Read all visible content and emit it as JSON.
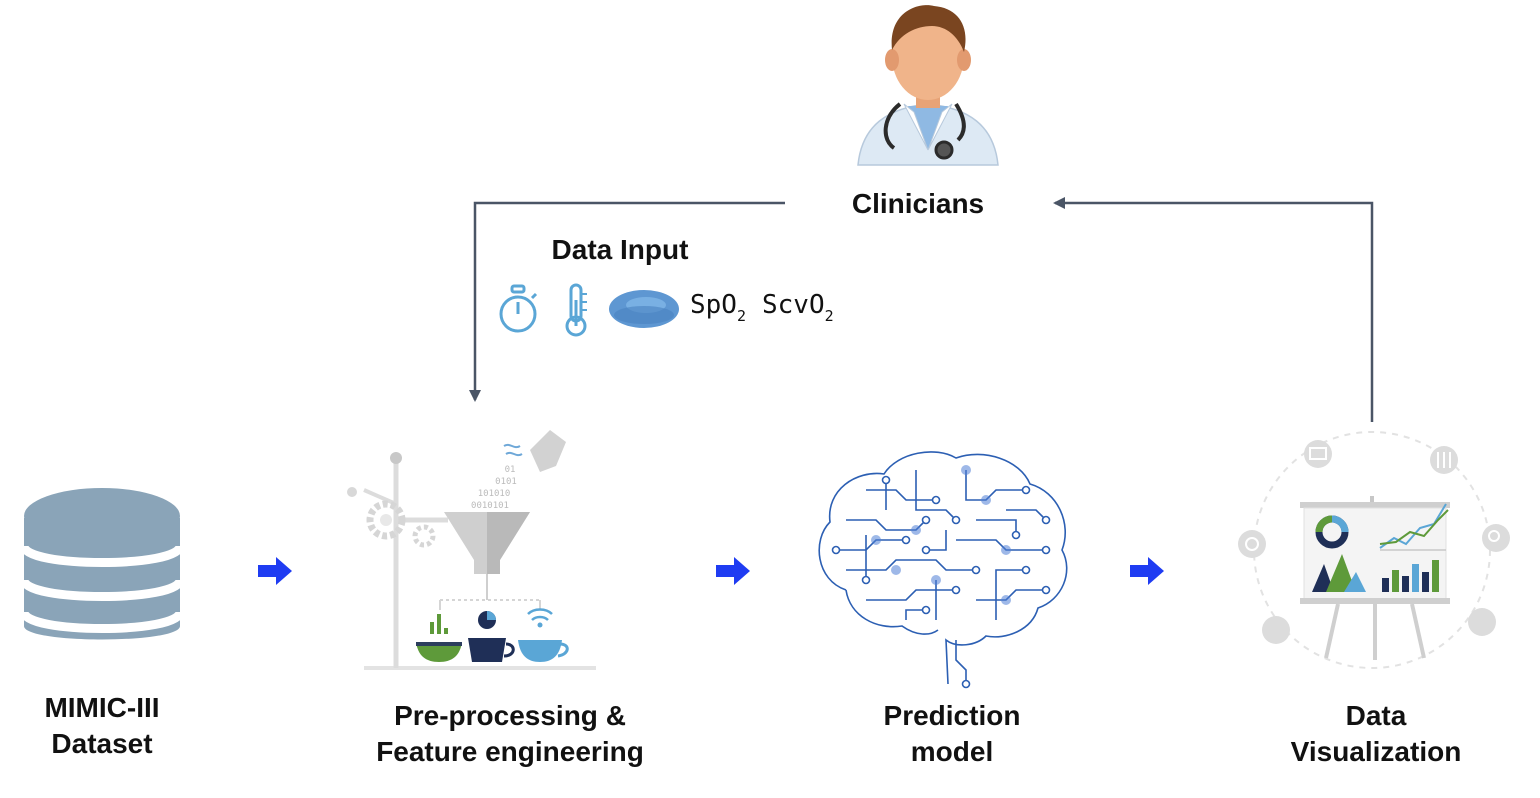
{
  "nodes": {
    "clinicians": {
      "label": "Clinicians"
    },
    "mimic": {
      "label_line1": "MIMIC-III",
      "label_line2": "Dataset"
    },
    "preprocessing": {
      "label_line1": "Pre-processing &",
      "label_line2": "Feature engineering"
    },
    "prediction": {
      "label_line1": "Prediction",
      "label_line2": "model"
    },
    "visualization": {
      "label_line1": "Data",
      "label_line2": "Visualization"
    }
  },
  "data_input": {
    "title": "Data Input",
    "icons": [
      "stopwatch-icon",
      "thermometer-icon",
      "red-blood-cell-icon"
    ],
    "spo2": {
      "base": "SpO",
      "sub": "2"
    },
    "scvo2": {
      "base": "ScvO",
      "sub": "2"
    }
  },
  "preprocessing_binary": [
    "01",
    "0101",
    "101010",
    "0010101"
  ],
  "colors": {
    "connector": "#4a5566",
    "flow_arrow": "#1f3cf2",
    "database": "#8aa4b8",
    "icon_blue": "#5aa6d6",
    "brain_blue": "#2c5fb3",
    "chart_green": "#5e9a3a",
    "chart_navy": "#1f2f57"
  }
}
